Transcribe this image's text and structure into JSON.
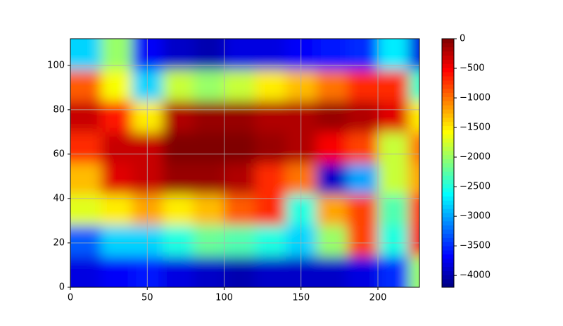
{
  "chart_data": {
    "type": "contourf",
    "colormap": "jet",
    "grid": true,
    "xbins": [
      0,
      20,
      40,
      60,
      80,
      100,
      120,
      140,
      160,
      180,
      200,
      220,
      227
    ],
    "ybins": [
      0,
      14,
      28,
      42,
      56,
      70,
      84,
      98,
      112
    ],
    "z": [
      [
        -3800,
        -3700,
        -3600,
        -3800,
        -3900,
        -4000,
        -3900,
        -3900,
        -3900,
        -3800,
        -3500,
        -2000
      ],
      [
        -3300,
        -2800,
        -2800,
        -2500,
        -2200,
        -2300,
        -2500,
        -2800,
        -2000,
        -800,
        -2500,
        -500
      ],
      [
        -1700,
        -1500,
        -1200,
        -1500,
        -1300,
        -900,
        -700,
        -2500,
        -1200,
        -800,
        -2300,
        -700
      ],
      [
        -1300,
        -400,
        -300,
        -100,
        -100,
        -200,
        -700,
        -1000,
        -3900,
        -3000,
        -1800,
        -1200
      ],
      [
        -700,
        -300,
        -300,
        0,
        0,
        0,
        -100,
        -200,
        -500,
        -800,
        -1800,
        -1000
      ],
      [
        -300,
        -600,
        -1500,
        -200,
        -100,
        -100,
        -200,
        -200,
        -100,
        -200,
        -400,
        -1500
      ],
      [
        -900,
        -1600,
        -2800,
        -1800,
        -2000,
        -1800,
        -1500,
        -1300,
        -1000,
        -700,
        -700,
        -2400
      ],
      [
        -2800,
        -2000,
        -3700,
        -3900,
        -4000,
        -3800,
        -3800,
        -3700,
        -3600,
        -3500,
        -2700,
        -3800
      ]
    ],
    "xlim": [
      0,
      227
    ],
    "ylim": [
      0,
      112
    ],
    "xticks": [
      0,
      50,
      100,
      150,
      200
    ],
    "yticks": [
      0,
      20,
      40,
      60,
      80,
      100
    ],
    "clim": [
      -4200,
      0
    ],
    "cticks": [
      0,
      {
        "value": -500,
        "label": "−500"
      },
      {
        "value": -1000,
        "label": "−1000"
      },
      {
        "value": -1500,
        "label": "−1500"
      },
      {
        "value": -2000,
        "label": "−2000"
      },
      {
        "value": -2500,
        "label": "−2500"
      },
      {
        "value": -3000,
        "label": "−3000"
      },
      {
        "value": -3500,
        "label": "−3500"
      },
      {
        "value": -4000,
        "label": "−4000"
      }
    ]
  }
}
